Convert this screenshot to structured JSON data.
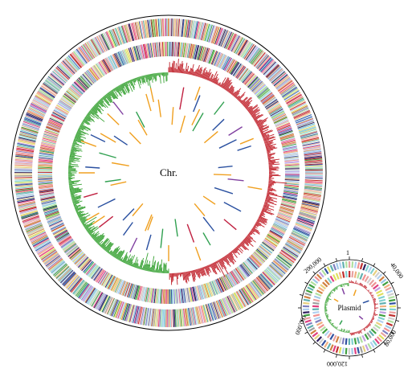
{
  "chromosome": {
    "label": "Chr."
  },
  "plasmid": {
    "label": "Plasmid",
    "tick_labels": [
      "1",
      "40,000",
      "80,000",
      "120,000",
      "160,000",
      "200,000"
    ]
  },
  "palette": {
    "cds": [
      "#e8a0a0",
      "#a0c8e8",
      "#b0e0a0",
      "#e8d080",
      "#c0a0e0",
      "#80d0d0",
      "#f0b080",
      "#d0d0d0",
      "#3050a0",
      "#c03030",
      "#40a040",
      "#e0e060",
      "#8080c0",
      "#f09090",
      "#60b0b0",
      "#d08040",
      "#a0a0a0",
      "#302060",
      "#e04080",
      "#b0d0f0"
    ],
    "gc_positive": "#c0202a",
    "gc_negative": "#3aa336",
    "ncrna": [
      "#f0a020",
      "#8040a0",
      "#c02040",
      "#2a50a0",
      "#30a050"
    ]
  }
}
